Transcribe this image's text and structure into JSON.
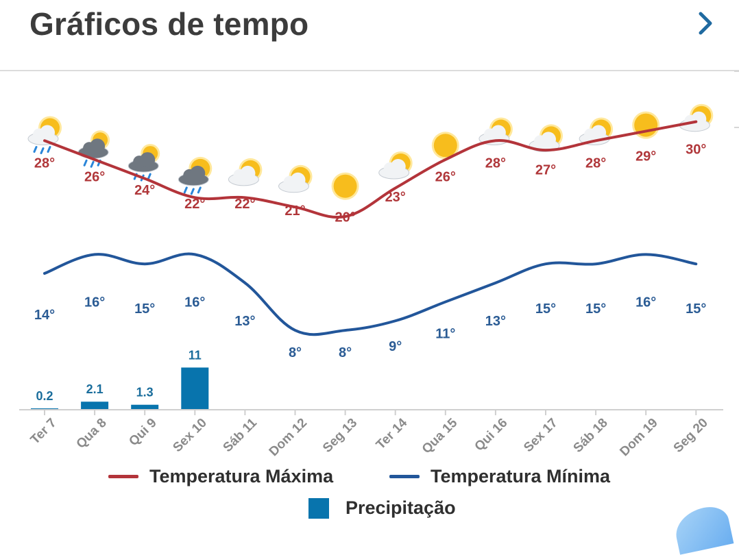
{
  "header": {
    "title": "Gráficos de tempo"
  },
  "colors": {
    "max_line": "#b3343a",
    "min_line": "#22569a",
    "precip_bar": "#0874ad",
    "sun": "#f7bd1d",
    "cloud": "#e9ecef",
    "rain_cloud": "#6f7780",
    "rain_drop": "#2a86d9"
  },
  "chart_data": {
    "type": "line",
    "categories": [
      "Ter 7",
      "Qua 8",
      "Qui 9",
      "Sex 10",
      "Sáb 11",
      "Dom 12",
      "Seg 13",
      "Ter 14",
      "Qua 15",
      "Qui 16",
      "Sex 17",
      "Sáb 18",
      "Dom 19",
      "Seg 20"
    ],
    "icons": [
      "rain-sun-icon",
      "rain-cloud-icon",
      "rain-cloud-icon",
      "rain-sun-cloud-icon",
      "partly-cloudy-icon",
      "partly-cloudy-icon",
      "sun-icon",
      "partly-cloudy-icon",
      "sun-icon",
      "partly-cloudy-icon",
      "partly-cloudy-icon",
      "partly-cloudy-icon",
      "sun-icon",
      "partly-cloudy-icon"
    ],
    "series": [
      {
        "name": "Temperatura Máxima",
        "values": [
          28,
          26,
          24,
          22,
          22,
          21,
          20,
          23,
          26,
          28,
          27,
          28,
          29,
          30
        ],
        "labels": [
          "28°",
          "26°",
          "24°",
          "22°",
          "22°",
          "21°",
          "20°",
          "23°",
          "26°",
          "28°",
          "27°",
          "28°",
          "29°",
          "30°"
        ]
      },
      {
        "name": "Temperatura Mínima",
        "values": [
          14,
          16,
          15,
          16,
          13,
          8,
          8,
          9,
          11,
          13,
          15,
          15,
          16,
          15
        ],
        "labels": [
          "14°",
          "16°",
          "15°",
          "16°",
          "13°",
          "8°",
          "8°",
          "9°",
          "11°",
          "13°",
          "15°",
          "15°",
          "16°",
          "15°"
        ]
      }
    ],
    "precipitation": {
      "name": "Precipitação",
      "values": [
        0.2,
        2.1,
        1.3,
        11,
        0,
        0,
        0,
        0,
        0,
        0,
        0,
        0,
        0,
        0
      ],
      "labels": [
        "0.2",
        "2.1",
        "1.3",
        "11",
        "",
        "",
        "",
        "",
        "",
        "",
        "",
        "",
        "",
        ""
      ]
    },
    "legend_position": "bottom-center",
    "grid": false
  },
  "legend": {
    "max_label": "Temperatura Máxima",
    "min_label": "Temperatura Mínima",
    "precip_label": "Precipitação"
  }
}
